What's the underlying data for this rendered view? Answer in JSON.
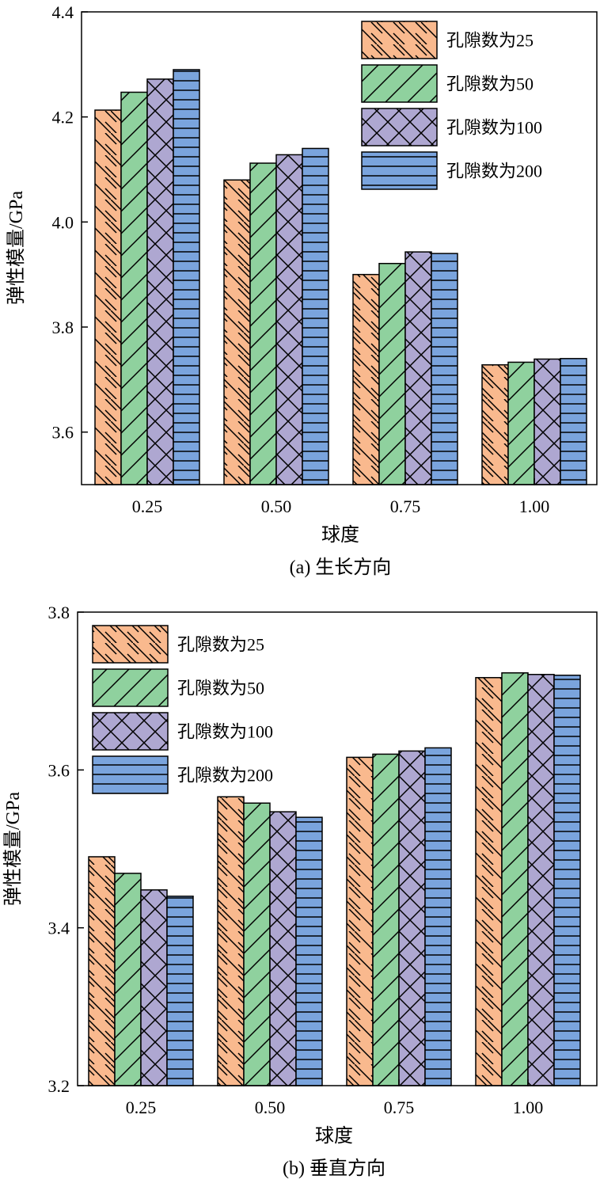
{
  "colors": {
    "series": [
      "#f9b98e",
      "#8fd19e",
      "#aea7d1",
      "#7aa4dd"
    ],
    "stroke": "#000000"
  },
  "chart_data": [
    {
      "type": "bar",
      "caption": "(a) 生长方向",
      "xlabel": "球度",
      "ylabel": "弹性模量/GPa",
      "categories": [
        "0.25",
        "0.50",
        "0.75",
        "1.00"
      ],
      "ylim": [
        3.5,
        4.4
      ],
      "yticks": [
        "3.6",
        "3.8",
        "4.0",
        "4.2",
        "4.4"
      ],
      "legend_position": "top-right",
      "series": [
        {
          "name": "孔隙数为25",
          "pattern": "backslash",
          "values": [
            4.213,
            4.08,
            3.9,
            3.728
          ]
        },
        {
          "name": "孔隙数为50",
          "pattern": "slash",
          "values": [
            4.247,
            4.112,
            3.921,
            3.733
          ]
        },
        {
          "name": "孔隙数为100",
          "pattern": "cross",
          "values": [
            4.272,
            4.128,
            3.943,
            3.739
          ]
        },
        {
          "name": "孔隙数为200",
          "pattern": "horizontal",
          "values": [
            4.29,
            4.14,
            3.94,
            3.74
          ]
        }
      ]
    },
    {
      "type": "bar",
      "caption": "(b) 垂直方向",
      "xlabel": "球度",
      "ylabel": "弹性模量/GPa",
      "categories": [
        "0.25",
        "0.50",
        "0.75",
        "1.00"
      ],
      "ylim": [
        3.2,
        3.8
      ],
      "yticks": [
        "3.2",
        "3.4",
        "3.6",
        "3.8"
      ],
      "legend_position": "top-left",
      "series": [
        {
          "name": "孔隙数为25",
          "pattern": "backslash",
          "values": [
            3.49,
            3.566,
            3.616,
            3.717
          ]
        },
        {
          "name": "孔隙数为50",
          "pattern": "slash",
          "values": [
            3.469,
            3.558,
            3.62,
            3.723
          ]
        },
        {
          "name": "孔隙数为100",
          "pattern": "cross",
          "values": [
            3.448,
            3.547,
            3.624,
            3.721
          ]
        },
        {
          "name": "孔隙数为200",
          "pattern": "horizontal",
          "values": [
            3.44,
            3.54,
            3.628,
            3.72
          ]
        }
      ]
    }
  ]
}
